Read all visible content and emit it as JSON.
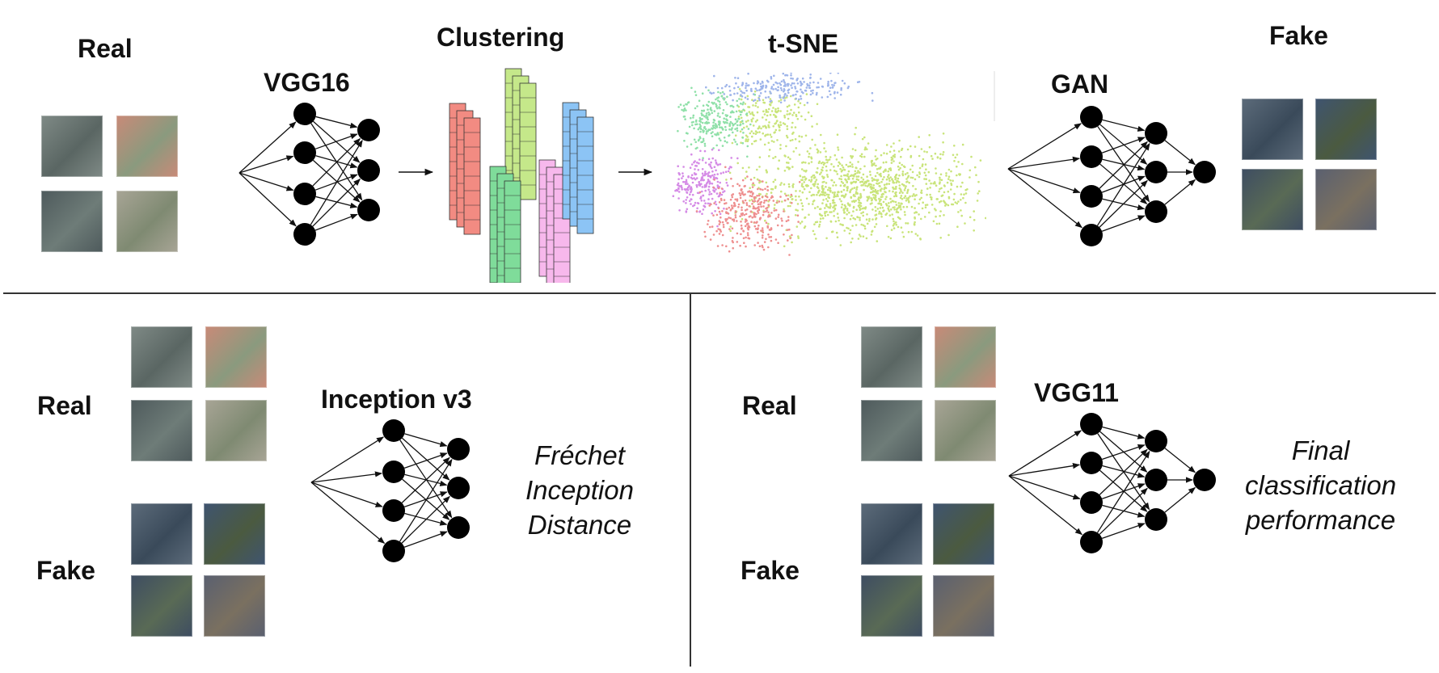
{
  "top": {
    "real_label": "Real",
    "vgg16_label": "VGG16",
    "clustering_label": "Clustering",
    "tsne_label": "t-SNE",
    "gan_label": "GAN",
    "fake_label": "Fake"
  },
  "bottom_left": {
    "real_label": "Real",
    "fake_label": "Fake",
    "model_label": "Inception v3",
    "metric_lines": [
      "Fréchet",
      "Inception",
      "Distance"
    ]
  },
  "bottom_right": {
    "real_label": "Real",
    "fake_label": "Fake",
    "model_label": "VGG11",
    "metric_lines": [
      "Final",
      "classification",
      "performance"
    ]
  },
  "cluster_colors": [
    "#f28b82",
    "#c5e88a",
    "#7fdc9a",
    "#f7b8ec",
    "#8cc4f5"
  ],
  "tsne_colors": {
    "green": "#c9e47a",
    "blue": "#9fb5ea",
    "mint": "#8fe0a8",
    "violet": "#d58be6",
    "red": "#ee8f8f"
  },
  "thumbnail_colors": {
    "real": [
      [
        "#7f8a86",
        "#5a6663"
      ],
      [
        "#c98a78",
        "#8a9a7e"
      ],
      [
        "#4e5a5c",
        "#6e7c78"
      ],
      [
        "#a8a596",
        "#7f8a72"
      ]
    ],
    "fake": [
      [
        "#5c6b7a",
        "#3a4a5a"
      ],
      [
        "#3f5470",
        "#4b5a40"
      ],
      [
        "#3e4d62",
        "#596a55"
      ],
      [
        "#5a6070",
        "#7a7060"
      ]
    ]
  }
}
